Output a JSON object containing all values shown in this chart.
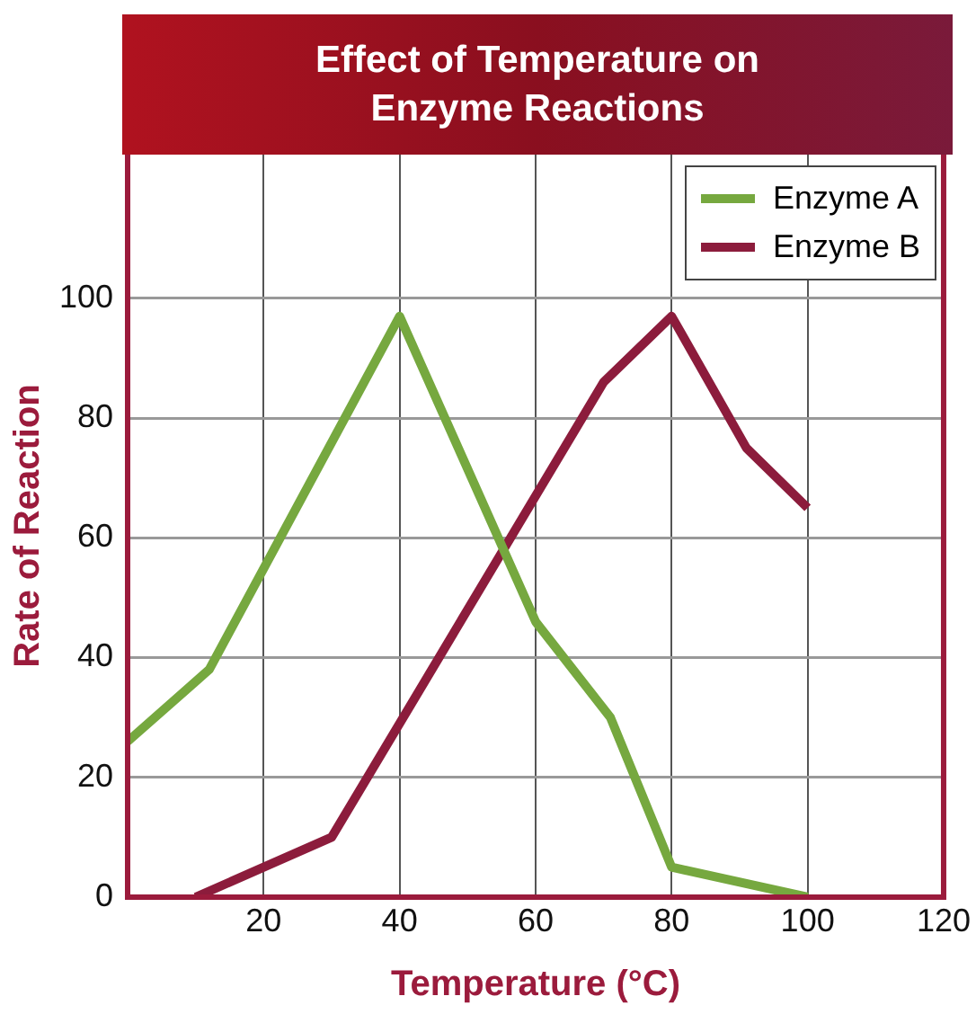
{
  "chart_data": {
    "type": "line",
    "title": "Effect of Temperature on Enzyme Reactions",
    "xlabel": "Temperature (°C)",
    "ylabel": "Rate of Reaction",
    "series": [
      {
        "name": "Enzyme A",
        "color": "#76a83f",
        "x": [
          0,
          12,
          40,
          60,
          71,
          80,
          100
        ],
        "values": [
          26,
          38,
          97,
          46,
          30,
          5,
          0
        ]
      },
      {
        "name": "Enzyme B",
        "color": "#8c1c3c",
        "x": [
          10,
          30,
          70,
          80,
          91,
          100
        ],
        "values": [
          0,
          10,
          86,
          97,
          75,
          65
        ]
      }
    ],
    "xlim": [
      0,
      120
    ],
    "xticks": [
      20,
      40,
      60,
      80,
      100,
      120
    ],
    "ylim": [
      0,
      124
    ],
    "yticks": [
      0,
      20,
      40,
      60,
      80,
      100
    ],
    "grid": true,
    "legend": "top right",
    "marker": "none",
    "line_style": "solid"
  }
}
